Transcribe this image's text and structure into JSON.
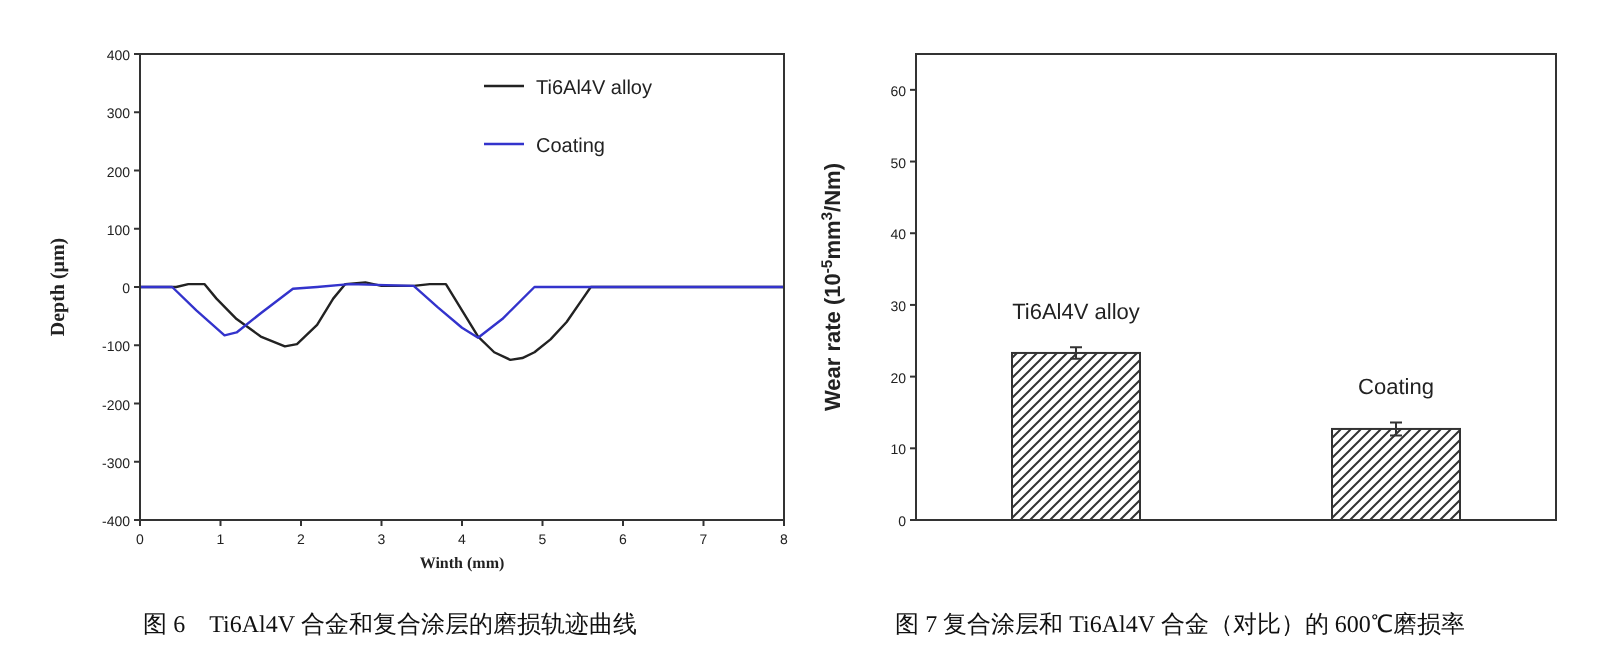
{
  "chart_data": [
    {
      "type": "line",
      "xlabel": "Winth (mm)",
      "ylabel": "Depth (μm)",
      "xlim": [
        0,
        8
      ],
      "ylim": [
        -400,
        400
      ],
      "xticks": [
        0,
        1,
        2,
        3,
        4,
        5,
        6,
        7,
        8
      ],
      "yticks": [
        -400,
        -300,
        -200,
        -100,
        0,
        100,
        200,
        300,
        400
      ],
      "legend": "top right",
      "grid": false,
      "annotations": [
        "图 6　Ti6Al4V 合金和复合涂层的磨损轨迹曲线"
      ],
      "series": [
        {
          "name": "Ti6Al4V alloy",
          "color": "#222222",
          "x": [
            0,
            0.45,
            0.6,
            0.8,
            0.95,
            1.2,
            1.5,
            1.8,
            1.95,
            2.2,
            2.4,
            2.55,
            2.8,
            3.0,
            3.4,
            3.6,
            3.8,
            4.0,
            4.2,
            4.4,
            4.6,
            4.75,
            4.9,
            5.1,
            5.3,
            5.5,
            5.6,
            8
          ],
          "values": [
            0,
            0,
            5,
            5,
            -20,
            -55,
            -85,
            -102,
            -98,
            -65,
            -20,
            5,
            8,
            2,
            2,
            5,
            5,
            -40,
            -85,
            -112,
            -125,
            -122,
            -112,
            -90,
            -60,
            -20,
            0,
            0
          ]
        },
        {
          "name": "Coating",
          "color": "#3333cc",
          "x": [
            0,
            0.4,
            0.7,
            1.05,
            1.2,
            1.5,
            1.9,
            2.2,
            2.6,
            3.4,
            3.7,
            4.0,
            4.2,
            4.5,
            4.9,
            8
          ],
          "values": [
            0,
            0,
            -40,
            -83,
            -78,
            -45,
            -3,
            0,
            5,
            2,
            -35,
            -70,
            -87,
            -55,
            0,
            0
          ]
        }
      ]
    },
    {
      "type": "bar",
      "ylabel": "Wear rate (10$^{-5}$mm$^{3}$/Nm)",
      "ylim": [
        0,
        65
      ],
      "yticks": [
        0,
        10,
        20,
        30,
        40,
        50,
        60
      ],
      "tick_labels": "y",
      "grid": false,
      "annotations": [
        "图 7 复合涂层和 Ti6Al4V 合金（对比）的 600℃磨损率"
      ],
      "categories": [
        "Ti6Al4V alloy",
        "Coating"
      ],
      "values": [
        23.3,
        12.7
      ],
      "errors": [
        0.8,
        0.9
      ],
      "color": "#333333"
    }
  ]
}
